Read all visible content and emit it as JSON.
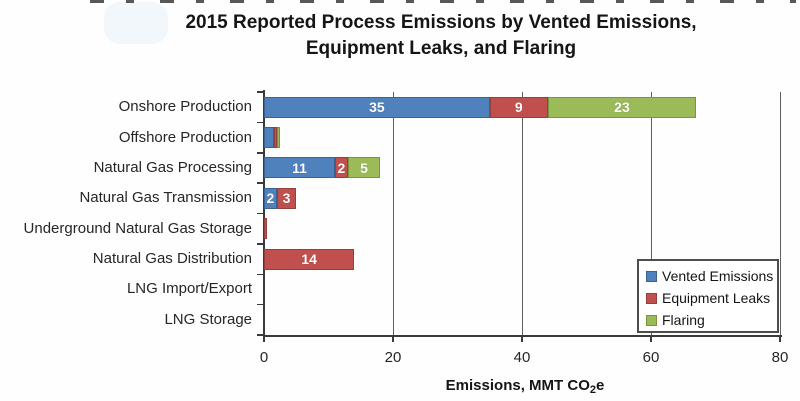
{
  "title": {
    "line1": "2015 Reported Process Emissions by Vented Emissions,",
    "line2": "Equipment Leaks, and Flaring"
  },
  "chart_data": {
    "type": "bar",
    "orientation": "horizontal",
    "stacked": true,
    "title": "2015 Reported Process Emissions by Vented Emissions, Equipment Leaks, and Flaring",
    "title_lines": [
      "2015 Reported Process Emissions by Vented Emissions,",
      "Equipment Leaks, and Flaring"
    ],
    "categories": [
      "Onshore Production",
      "Offshore Production",
      "Natural Gas Processing",
      "Natural Gas Transmission",
      "Underground Natural Gas Storage",
      "Natural Gas Distribution",
      "LNG Import/Export",
      "LNG Storage"
    ],
    "series": [
      {
        "name": "Vented Emissions",
        "color": "#4F81BD",
        "border": "#3A6394",
        "values": [
          35,
          1.5,
          11,
          2,
          0,
          0,
          0,
          0
        ]
      },
      {
        "name": "Equipment Leaks",
        "color": "#C0504D",
        "border": "#96403D",
        "values": [
          9,
          0.5,
          2,
          3,
          0.5,
          14,
          0,
          0
        ]
      },
      {
        "name": "Flaring",
        "color": "#9BBB59",
        "border": "#7A9440",
        "values": [
          23,
          0.5,
          5,
          0,
          0,
          0,
          0,
          0
        ]
      }
    ],
    "xlabel": "Emissions, MMT CO2e",
    "xlabel_parts": {
      "prefix": "Emissions, MMT CO",
      "sub": "2",
      "suffix": "e"
    },
    "xlim": [
      0,
      80
    ],
    "xticks": [
      0,
      20,
      40,
      60,
      80
    ],
    "grid": "vertical",
    "legend_position": "bottom-right",
    "bar_label_min": 2
  }
}
